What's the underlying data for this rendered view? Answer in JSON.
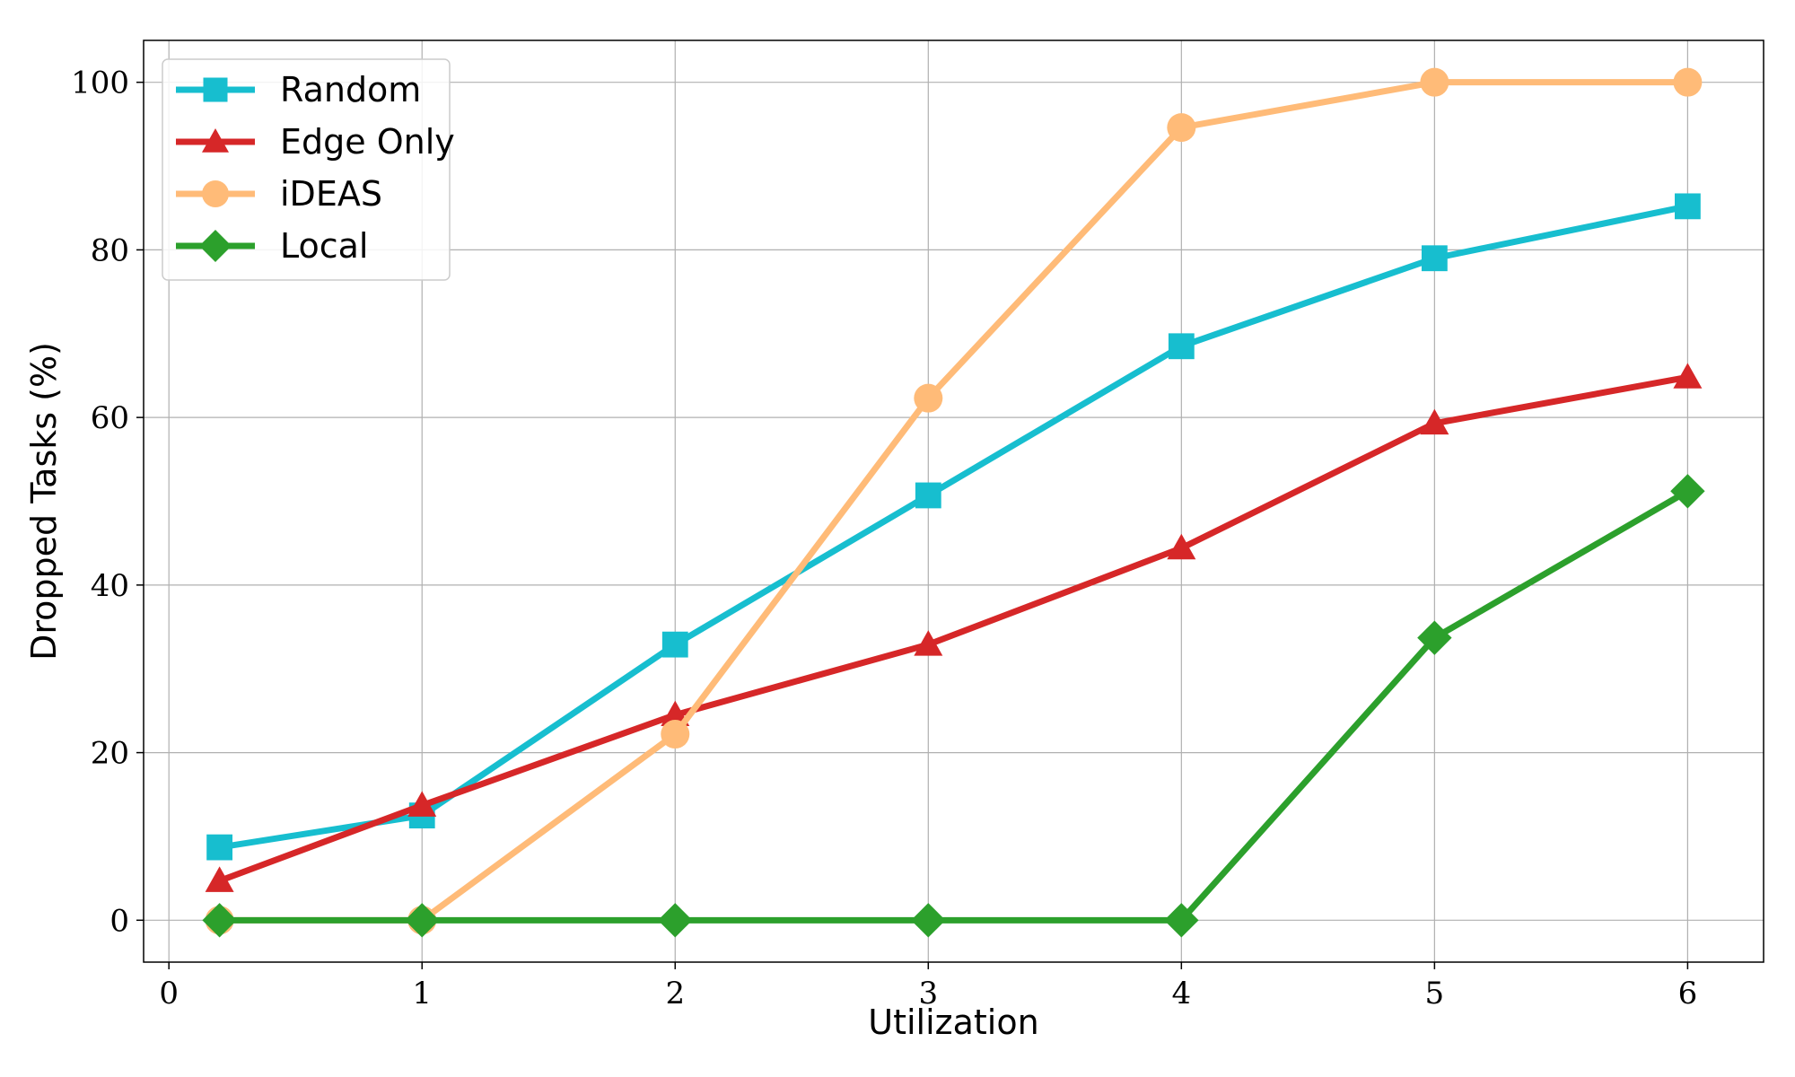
{
  "chart_data": {
    "type": "line",
    "xlabel": "Utilization",
    "ylabel": "Dropped Tasks (%)",
    "xlim": [
      -0.1,
      6.3
    ],
    "ylim": [
      -5,
      105
    ],
    "xticks": [
      0,
      1,
      2,
      3,
      4,
      5,
      6
    ],
    "yticks": [
      0,
      20,
      40,
      60,
      80,
      100
    ],
    "grid": true,
    "legend_position": "top-left",
    "x": [
      0.2,
      1,
      2,
      3,
      4,
      5,
      6
    ],
    "series": [
      {
        "name": "Random",
        "color": "#17becf",
        "marker": "square",
        "values": [
          8.7,
          12.5,
          32.9,
          50.7,
          68.5,
          79.0,
          85.2
        ]
      },
      {
        "name": "Edge Only",
        "color": "#d62728",
        "marker": "triangle",
        "values": [
          4.7,
          13.7,
          24.5,
          32.9,
          44.4,
          59.3,
          64.8
        ]
      },
      {
        "name": "iDEAS",
        "color": "#ffbb78",
        "marker": "circle",
        "values": [
          0,
          0,
          22.2,
          62.3,
          94.6,
          100,
          100
        ]
      },
      {
        "name": "Local",
        "color": "#2ca02c",
        "marker": "diamond",
        "values": [
          0,
          0,
          0,
          0,
          0,
          33.7,
          51.2
        ]
      }
    ]
  }
}
